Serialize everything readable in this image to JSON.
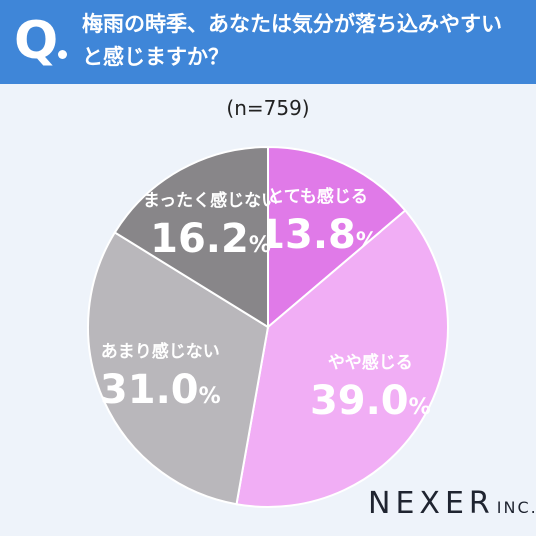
{
  "header": {
    "q_label": "Q",
    "question": "梅雨の時季、あなたは気分が落ち込みやすいと感じますか？"
  },
  "chart_data": {
    "type": "pie",
    "sample": "(n=759)",
    "slices": [
      {
        "label": "とても感じる",
        "value": 13.8,
        "display": "13.8",
        "unit": "%",
        "color": "#e07ae8"
      },
      {
        "label": "やや感じる",
        "value": 39.0,
        "display": "39.0",
        "unit": "%",
        "color": "#f1aef5"
      },
      {
        "label": "あまり感じない",
        "value": 31.0,
        "display": "31.0",
        "unit": "%",
        "color": "#b9b7bb"
      },
      {
        "label": "まったく感じない",
        "value": 16.2,
        "display": "16.2",
        "unit": "%",
        "color": "#888689"
      }
    ],
    "start": "12 o'clock",
    "direction": "clockwise"
  },
  "brand": {
    "name": "NEXER",
    "suffix": "INC."
  }
}
